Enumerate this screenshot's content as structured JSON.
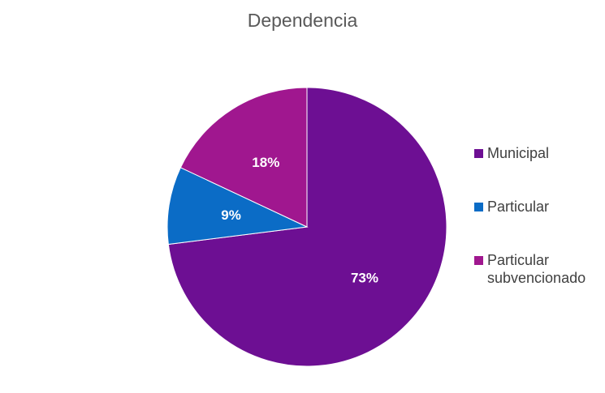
{
  "chart_data": {
    "type": "pie",
    "title": "Dependencia",
    "categories": [
      "Municipal",
      "Particular",
      "Particular subvencionado"
    ],
    "values": [
      73,
      9,
      18
    ],
    "data_labels": [
      "73%",
      "9%",
      "18%"
    ],
    "colors": [
      "#6d0f93",
      "#0b6cc6",
      "#a0178f"
    ],
    "legend": "right"
  }
}
